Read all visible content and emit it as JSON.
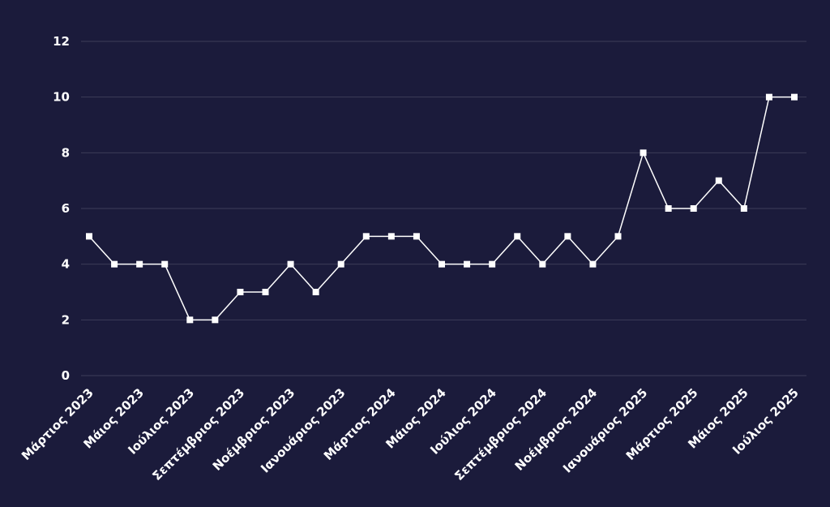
{
  "chart_data": {
    "type": "line",
    "categories": [
      "Μάρτιος 2023",
      null,
      "Μάιος 2023",
      null,
      "Ιούλιος 2023",
      null,
      "Σεπτέμβριος 2023",
      null,
      "Νοέμβριος 2023",
      null,
      "Ιανουάριος 2023",
      null,
      "Μάρτιος 2024",
      null,
      "Μάιος 2024",
      null,
      "Ιούλιος 2024",
      null,
      "Σεπτέμβριος 2024",
      null,
      "Νοέμβριος 2024",
      null,
      "Ιανουάριος 2025",
      null,
      "Μάρτιος 2025",
      null,
      "Μάιος 2025",
      null,
      "Ιούλιος 2025"
    ],
    "values": [
      5,
      4,
      4,
      4,
      2,
      2,
      3,
      3,
      4,
      3,
      4,
      5,
      5,
      5,
      4,
      4,
      4,
      5,
      4,
      5,
      4,
      5,
      8,
      6,
      6,
      7,
      6,
      10,
      10
    ],
    "color": "#ffffff",
    "ylim": [
      0,
      12
    ],
    "yticks": [
      0,
      2,
      4,
      6,
      8,
      10,
      12
    ],
    "grid": true
  }
}
